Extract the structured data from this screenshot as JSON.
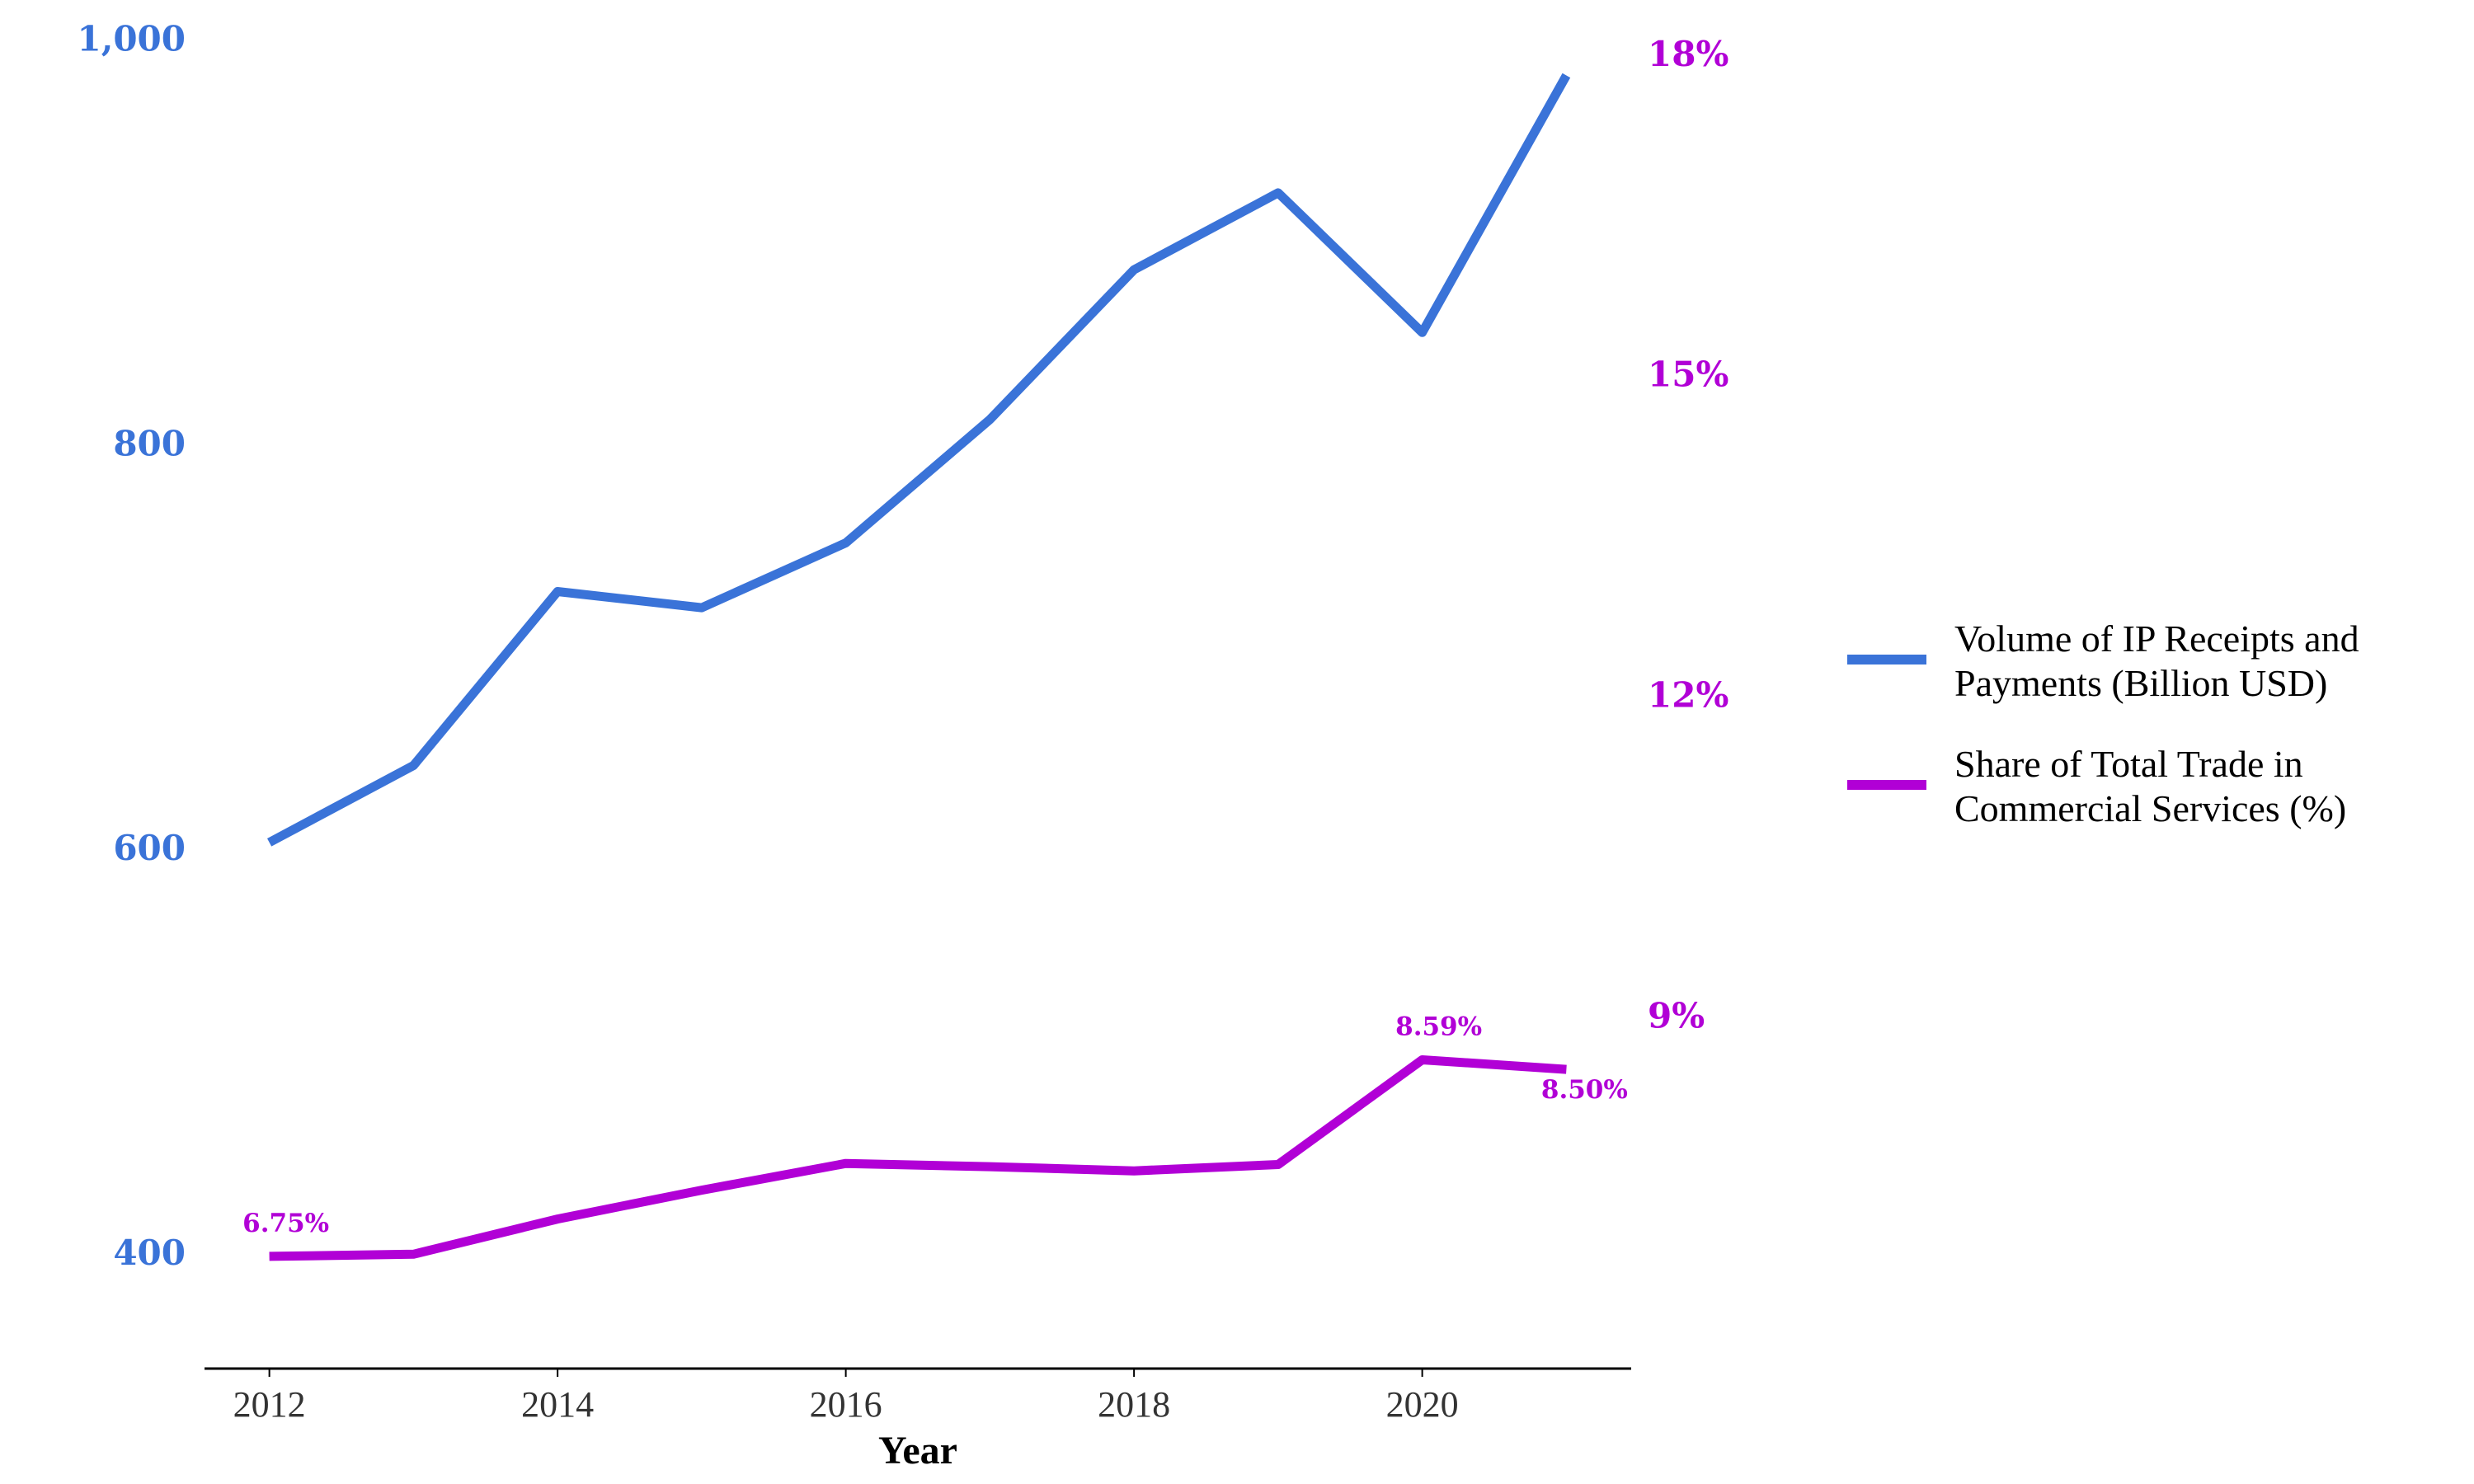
{
  "chart_data": {
    "type": "line",
    "x": [
      2012,
      2013,
      2014,
      2015,
      2016,
      2017,
      2018,
      2019,
      2020,
      2021
    ],
    "xlabel": "Year",
    "x_ticks": [
      2012,
      2014,
      2016,
      2018,
      2020
    ],
    "x_tick_labels": [
      "2012",
      "2014",
      "2016",
      "2018",
      "2020"
    ],
    "xlim": [
      2011.55,
      2021.45
    ],
    "grid": false,
    "legend_position": "right",
    "series": [
      {
        "name": "Volume of IP Receipts and Payments (Billion USD)",
        "axis": "left",
        "color": "#3a73d8",
        "values": [
          603,
          641,
          727,
          719,
          751,
          812,
          886,
          924,
          855,
          982
        ]
      },
      {
        "name": "Share of Total Trade in Commercial Services (%)",
        "axis": "right",
        "color": "#b100d6",
        "values": [
          6.75,
          6.77,
          7.1,
          7.37,
          7.62,
          7.59,
          7.55,
          7.61,
          8.59,
          8.5
        ],
        "data_labels": [
          {
            "index": 0,
            "text": "6.75%"
          },
          {
            "index": 8,
            "text": "8.59%"
          },
          {
            "index": 9,
            "text": "8.50%"
          }
        ]
      }
    ],
    "y_left": {
      "ticks": [
        400,
        600,
        800,
        1000
      ],
      "tick_labels": [
        "400",
        "600",
        "800",
        "1,000"
      ],
      "ylim": [
        343,
        1003
      ],
      "color": "#3a73d8"
    },
    "y_right": {
      "ticks": [
        9,
        12,
        15,
        18
      ],
      "tick_labels": [
        "9%",
        "12%",
        "15%",
        "18%"
      ],
      "ylim": [
        5.7,
        18.2
      ],
      "color": "#b100d6"
    }
  }
}
